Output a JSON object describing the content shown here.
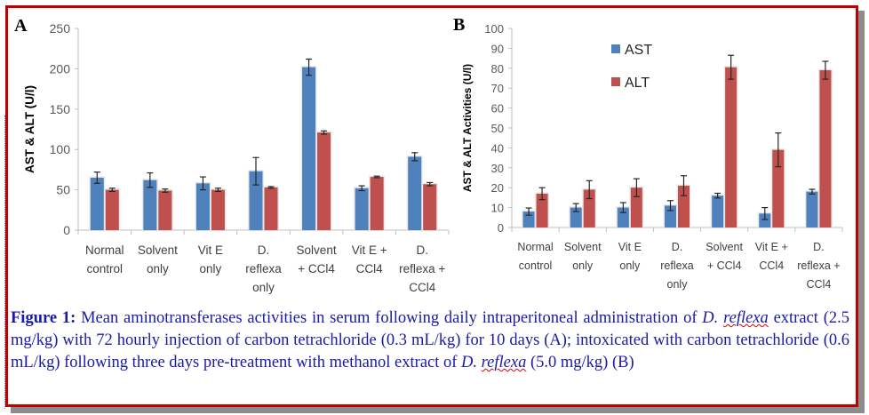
{
  "chart_data": [
    {
      "panel": "A",
      "type": "bar",
      "title": "",
      "xlabel": "",
      "ylabel": "AST & ALT (U/l)",
      "ylim": [
        0,
        250
      ],
      "yticks": [
        0,
        50,
        100,
        150,
        200,
        250
      ],
      "grid": false,
      "legend": null,
      "categories": [
        [
          "Normal",
          "control"
        ],
        [
          "Solvent",
          "only"
        ],
        [
          "Vit E",
          "only"
        ],
        [
          "D.",
          "reflexa",
          "only"
        ],
        [
          "Solvent",
          "+ CCl4"
        ],
        [
          "Vit E +",
          "CCl4"
        ],
        [
          "D.",
          "reflexa +",
          "CCl4"
        ]
      ],
      "series": [
        {
          "name": "AST",
          "color": "#4f81bd",
          "values": [
            65,
            62,
            58,
            73,
            202,
            52,
            91
          ],
          "errors": [
            7,
            9,
            8,
            17,
            10,
            3,
            5
          ]
        },
        {
          "name": "ALT",
          "color": "#c0504d",
          "values": [
            50,
            49,
            50,
            53,
            121,
            66,
            57
          ],
          "errors": [
            2,
            2,
            2,
            1,
            2,
            1,
            2
          ]
        }
      ]
    },
    {
      "panel": "B",
      "type": "bar",
      "title": "",
      "xlabel": "",
      "ylabel": "AST & ALT Activities (U/l)",
      "ylim": [
        0,
        100
      ],
      "yticks": [
        0,
        10,
        20,
        30,
        40,
        50,
        60,
        70,
        80,
        90,
        100
      ],
      "grid": false,
      "legend": "top-left",
      "categories": [
        [
          "Normal",
          "control"
        ],
        [
          "Solvent",
          "only"
        ],
        [
          "Vit E",
          "only"
        ],
        [
          "D.",
          "reflexa",
          "only"
        ],
        [
          "Solvent",
          "+ CCl4"
        ],
        [
          "Vit E +",
          "CCl4"
        ],
        [
          "D.",
          "reflexa +",
          "CCl4"
        ]
      ],
      "series": [
        {
          "name": "AST",
          "color": "#4f81bd",
          "values": [
            8,
            10,
            10,
            11,
            16,
            7,
            18
          ],
          "errors": [
            1.8,
            2,
            2.5,
            2.5,
            1.2,
            3,
            1.2
          ]
        },
        {
          "name": "ALT",
          "color": "#c0504d",
          "values": [
            17,
            19,
            20,
            21,
            80.5,
            39,
            79
          ],
          "errors": [
            3,
            4.5,
            4.5,
            5,
            6,
            8.5,
            4.5
          ]
        }
      ]
    }
  ],
  "caption": {
    "label": "Figure 1:",
    "p1": " Mean aminotransferases activities in serum following daily intraperitoneal administration of ",
    "i1": "D. ",
    "i1b": "reflexa",
    "p2": " extract (2.5 mg/kg) with 72 hourly injection of carbon tetrachloride (0.3 mL/kg) for 10 days (A); intoxicated with carbon tetrachloride (0.6 mL/kg) following three days pre-treatment with methanol extract of ",
    "i2": "D. ",
    "i2b": "reflexa",
    "p3": " (5.0 mg/kg) (B)"
  }
}
